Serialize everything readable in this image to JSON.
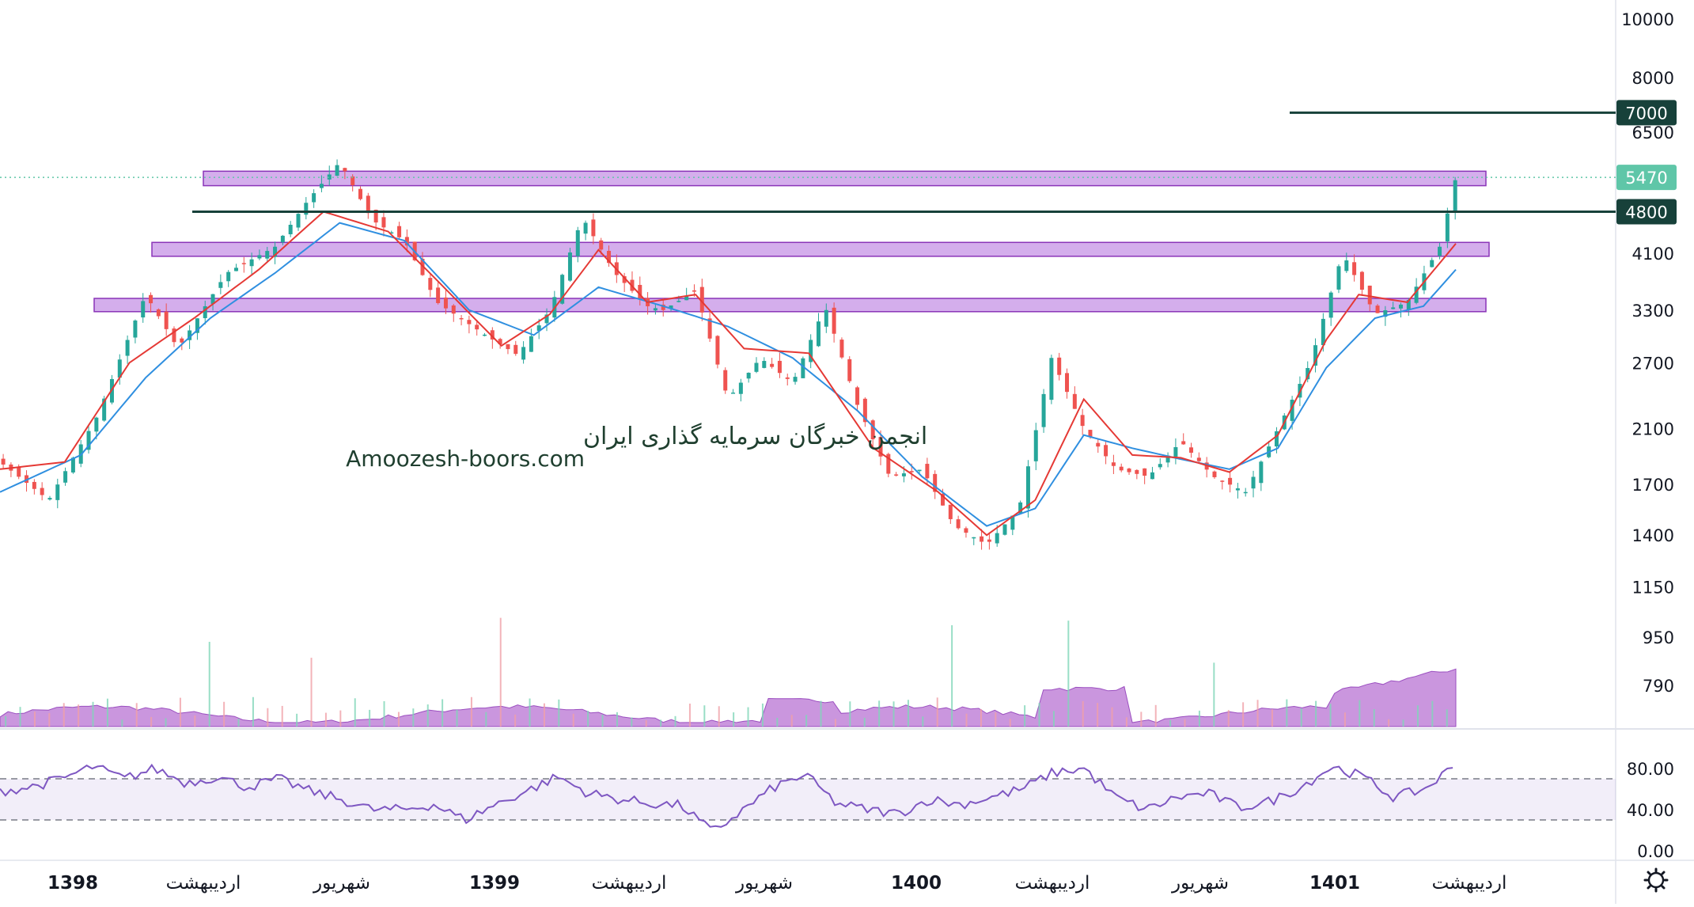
{
  "chart_data": {
    "type": "candlestick",
    "price_axis": {
      "scale": "log",
      "range": [
        700,
        11000
      ],
      "ticks": [
        10000,
        8000,
        6500,
        4100,
        3300,
        2700,
        2100,
        1700,
        1400,
        1150,
        950,
        790
      ]
    },
    "time_axis": {
      "labels": [
        {
          "text": "1398",
          "year": true
        },
        {
          "text": "اردیبهشت",
          "year": false
        },
        {
          "text": "شهریور",
          "year": false
        },
        {
          "text": "1399",
          "year": true
        },
        {
          "text": "اردیبهشت",
          "year": false
        },
        {
          "text": "شهریور",
          "year": false
        },
        {
          "text": "1400",
          "year": true
        },
        {
          "text": "اردیبهشت",
          "year": false
        },
        {
          "text": "شهریور",
          "year": false
        },
        {
          "text": "1401",
          "year": true
        },
        {
          "text": "اردیبهشت",
          "year": false
        }
      ]
    },
    "price_path": [
      [
        0,
        1850
      ],
      [
        3,
        1600
      ],
      [
        6,
        2200
      ],
      [
        8,
        3000
      ],
      [
        9,
        3500
      ],
      [
        11,
        2850
      ],
      [
        14,
        3800
      ],
      [
        17,
        4200
      ],
      [
        19,
        5000
      ],
      [
        21,
        5800
      ],
      [
        23,
        4650
      ],
      [
        25,
        4300
      ],
      [
        27,
        3400
      ],
      [
        30,
        3000
      ],
      [
        32,
        2780
      ],
      [
        34,
        3300
      ],
      [
        36,
        4700
      ],
      [
        38,
        3800
      ],
      [
        40,
        3350
      ],
      [
        41,
        3300
      ],
      [
        43,
        3550
      ],
      [
        45,
        2350
      ],
      [
        47,
        2750
      ],
      [
        49,
        2500
      ],
      [
        51,
        3350
      ],
      [
        53,
        2300
      ],
      [
        55,
        1750
      ],
      [
        57,
        1800
      ],
      [
        59,
        1450
      ],
      [
        61,
        1350
      ],
      [
        63,
        1550
      ],
      [
        65,
        2750
      ],
      [
        67,
        2100
      ],
      [
        69,
        1800
      ],
      [
        71,
        1750
      ],
      [
        73,
        2000
      ],
      [
        75,
        1750
      ],
      [
        77,
        1650
      ],
      [
        79,
        2100
      ],
      [
        81,
        2700
      ],
      [
        83,
        4100
      ],
      [
        85,
        3250
      ],
      [
        87,
        3400
      ],
      [
        89,
        4200
      ],
      [
        90,
        5470
      ]
    ],
    "ema_fast": [
      [
        0,
        1800
      ],
      [
        4,
        1850
      ],
      [
        8,
        2700
      ],
      [
        12,
        3200
      ],
      [
        16,
        3850
      ],
      [
        20,
        4800
      ],
      [
        24,
        4450
      ],
      [
        27,
        3700
      ],
      [
        31,
        2880
      ],
      [
        34,
        3250
      ],
      [
        37,
        4150
      ],
      [
        40,
        3400
      ],
      [
        43,
        3500
      ],
      [
        46,
        2850
      ],
      [
        50,
        2800
      ],
      [
        54,
        1950
      ],
      [
        58,
        1650
      ],
      [
        61,
        1400
      ],
      [
        64,
        1600
      ],
      [
        67,
        2350
      ],
      [
        70,
        1900
      ],
      [
        73,
        1880
      ],
      [
        76,
        1780
      ],
      [
        79,
        2050
      ],
      [
        82,
        2950
      ],
      [
        84,
        3500
      ],
      [
        87,
        3400
      ],
      [
        90,
        4250
      ]
    ],
    "ema_slow": [
      [
        0,
        1650
      ],
      [
        5,
        1900
      ],
      [
        9,
        2550
      ],
      [
        13,
        3200
      ],
      [
        17,
        3800
      ],
      [
        21,
        4600
      ],
      [
        25,
        4300
      ],
      [
        29,
        3300
      ],
      [
        33,
        3000
      ],
      [
        37,
        3600
      ],
      [
        41,
        3350
      ],
      [
        45,
        3100
      ],
      [
        49,
        2750
      ],
      [
        53,
        2250
      ],
      [
        57,
        1750
      ],
      [
        61,
        1450
      ],
      [
        64,
        1550
      ],
      [
        67,
        2050
      ],
      [
        70,
        1950
      ],
      [
        73,
        1870
      ],
      [
        76,
        1800
      ],
      [
        79,
        1950
      ],
      [
        82,
        2650
      ],
      [
        85,
        3200
      ],
      [
        88,
        3350
      ],
      [
        90,
        3850
      ]
    ],
    "horizontal_levels": [
      {
        "price": 7000,
        "label": "7000",
        "color": "#17413a"
      },
      {
        "price": 4800,
        "label": "4800",
        "color": "#17413a"
      }
    ],
    "last_price": {
      "price": 5470,
      "label": "5470",
      "color": "#5fc6a8"
    },
    "zones": [
      {
        "price_low": 5300,
        "price_high": 5600,
        "color": "#b06bdc"
      },
      {
        "price_low": 4050,
        "price_high": 4270,
        "color": "#b06bdc"
      },
      {
        "price_low": 3280,
        "price_high": 3450,
        "color": "#b06bdc"
      }
    ],
    "volume_color": "#b36ad0",
    "rsi": {
      "levels": [
        70,
        30
      ],
      "ticks": [
        "80.00",
        "40.00",
        "0.00"
      ],
      "range": [
        0,
        100
      ],
      "values": [
        [
          0,
          58
        ],
        [
          2,
          62
        ],
        [
          4,
          70
        ],
        [
          6,
          82
        ],
        [
          8,
          70
        ],
        [
          10,
          80
        ],
        [
          12,
          66
        ],
        [
          14,
          72
        ],
        [
          16,
          62
        ],
        [
          18,
          70
        ],
        [
          20,
          58
        ],
        [
          22,
          50
        ],
        [
          24,
          40
        ],
        [
          26,
          40
        ],
        [
          28,
          45
        ],
        [
          30,
          30
        ],
        [
          32,
          45
        ],
        [
          34,
          58
        ],
        [
          36,
          72
        ],
        [
          38,
          56
        ],
        [
          40,
          50
        ],
        [
          42,
          46
        ],
        [
          44,
          44
        ],
        [
          46,
          18
        ],
        [
          48,
          40
        ],
        [
          50,
          62
        ],
        [
          52,
          74
        ],
        [
          54,
          46
        ],
        [
          56,
          40
        ],
        [
          58,
          36
        ],
        [
          60,
          50
        ],
        [
          62,
          45
        ],
        [
          64,
          52
        ],
        [
          66,
          60
        ],
        [
          68,
          76
        ],
        [
          70,
          80
        ],
        [
          72,
          52
        ],
        [
          74,
          40
        ],
        [
          76,
          52
        ],
        [
          78,
          56
        ],
        [
          80,
          42
        ],
        [
          82,
          48
        ],
        [
          84,
          62
        ],
        [
          86,
          82
        ],
        [
          88,
          72
        ],
        [
          90,
          52
        ],
        [
          92,
          60
        ],
        [
          94,
          84
        ]
      ]
    },
    "watermark": {
      "line1": "انجمن خبرگان سرمایه گذاری ایران",
      "line2": "Amoozesh-boors.com"
    }
  },
  "toolbar": {
    "settings_icon": "gear-icon"
  }
}
